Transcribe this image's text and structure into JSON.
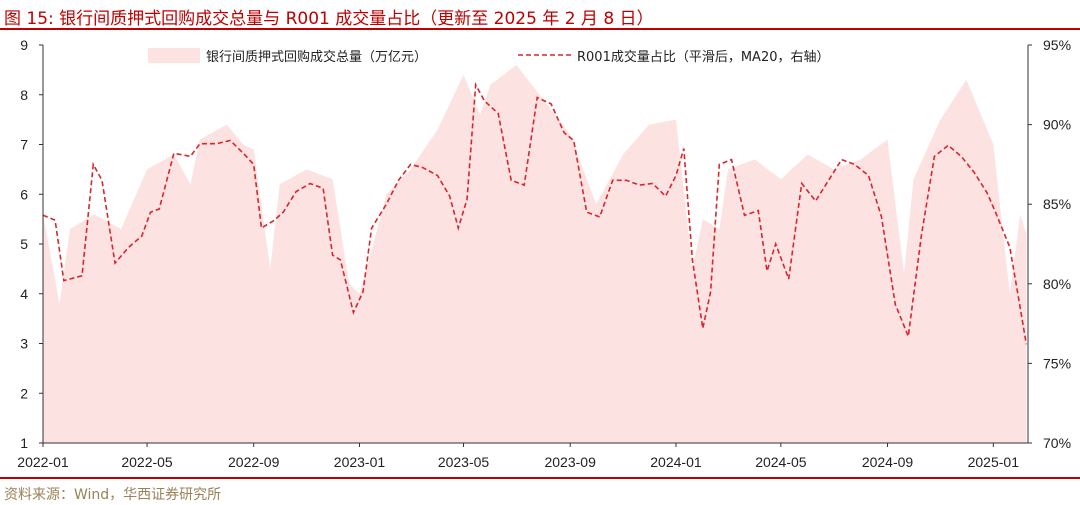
{
  "title": "图 15:  银行间质押式回购成交总量与 R001 成交量占比（更新至 2025 年 2 月 8 日）",
  "source": "资料来源：Wind，华西证券研究所",
  "colors": {
    "accent": "#c00000",
    "bar": "#fde2e2",
    "line": "#d9262b",
    "source": "#9a8259"
  },
  "chart_data": {
    "type": "area",
    "x_ticks": [
      "2022-01",
      "2022-05",
      "2022-09",
      "2023-01",
      "2023-05",
      "2023-09",
      "2024-01",
      "2024-05",
      "2024-09",
      "2025-01"
    ],
    "y_left": {
      "ylim": [
        1,
        9
      ],
      "ticks": [
        "1",
        "2",
        "3",
        "4",
        "5",
        "6",
        "7",
        "8",
        "9"
      ]
    },
    "y_right": {
      "ylim": [
        70,
        95
      ],
      "ticks": [
        "70%",
        "75%",
        "80%",
        "85%",
        "90%",
        "95%"
      ]
    },
    "legend": [
      "银行间质押式回购成交总量（万亿元）",
      "R001成交量占比（平滑后，MA20，右轴）"
    ],
    "grid": false,
    "series": [
      {
        "name": "银行间质押式回购成交总量（万亿元）",
        "axis": "left",
        "style": "area",
        "x": [
          "2022-01-01",
          "2022-01-20",
          "2022-02-01",
          "2022-03-01",
          "2022-04-01",
          "2022-05-01",
          "2022-06-01",
          "2022-06-20",
          "2022-07-01",
          "2022-08-01",
          "2022-08-20",
          "2022-09-01",
          "2022-09-20",
          "2022-10-01",
          "2022-11-01",
          "2022-12-01",
          "2022-12-20",
          "2023-01-01",
          "2023-01-20",
          "2023-02-01",
          "2023-03-01",
          "2023-04-01",
          "2023-05-01",
          "2023-05-20",
          "2023-06-01",
          "2023-07-01",
          "2023-08-01",
          "2023-09-01",
          "2023-10-01",
          "2023-11-01",
          "2023-12-01",
          "2024-01-01",
          "2024-01-20",
          "2024-02-01",
          "2024-02-20",
          "2024-03-01",
          "2024-04-01",
          "2024-05-01",
          "2024-06-01",
          "2024-07-01",
          "2024-08-01",
          "2024-09-01",
          "2024-09-20",
          "2024-10-01",
          "2024-11-01",
          "2024-12-01",
          "2025-01-01",
          "2025-01-20",
          "2025-02-01",
          "2025-02-08"
        ],
        "values": [
          5.6,
          3.8,
          5.3,
          5.6,
          5.3,
          6.5,
          6.8,
          6.2,
          7.1,
          7.4,
          7.0,
          6.9,
          4.5,
          6.2,
          6.5,
          6.3,
          4.2,
          4.0,
          5.2,
          6.0,
          6.5,
          7.3,
          8.4,
          7.6,
          8.2,
          8.6,
          7.9,
          7.2,
          5.8,
          6.8,
          7.4,
          7.5,
          4.5,
          5.5,
          5.3,
          6.5,
          6.7,
          6.3,
          6.8,
          6.5,
          6.7,
          7.1,
          4.4,
          6.3,
          7.5,
          8.3,
          7.0,
          4.0,
          5.6,
          5.2
        ]
      },
      {
        "name": "R001成交量占比（平滑后，MA20，右轴）",
        "axis": "right",
        "style": "dashed-line",
        "x": [
          "2022-01-01",
          "2022-01-15",
          "2022-01-25",
          "2022-02-15",
          "2022-02-28",
          "2022-03-10",
          "2022-03-25",
          "2022-04-10",
          "2022-04-25",
          "2022-05-05",
          "2022-05-15",
          "2022-06-01",
          "2022-06-20",
          "2022-07-01",
          "2022-07-20",
          "2022-08-05",
          "2022-08-20",
          "2022-09-01",
          "2022-09-10",
          "2022-09-25",
          "2022-10-05",
          "2022-10-20",
          "2022-11-05",
          "2022-11-20",
          "2022-12-01",
          "2022-12-10",
          "2022-12-25",
          "2023-01-05",
          "2023-01-15",
          "2023-02-01",
          "2023-02-15",
          "2023-03-01",
          "2023-03-15",
          "2023-04-01",
          "2023-04-15",
          "2023-04-25",
          "2023-05-05",
          "2023-05-15",
          "2023-05-25",
          "2023-06-10",
          "2023-06-25",
          "2023-07-10",
          "2023-07-25",
          "2023-08-10",
          "2023-08-25",
          "2023-09-05",
          "2023-09-20",
          "2023-10-05",
          "2023-10-20",
          "2023-11-05",
          "2023-11-20",
          "2023-12-05",
          "2023-12-20",
          "2024-01-01",
          "2024-01-10",
          "2024-01-20",
          "2024-02-01",
          "2024-02-10",
          "2024-02-20",
          "2024-03-05",
          "2024-03-20",
          "2024-04-05",
          "2024-04-15",
          "2024-04-25",
          "2024-05-10",
          "2024-05-25",
          "2024-06-10",
          "2024-06-25",
          "2024-07-10",
          "2024-07-25",
          "2024-08-10",
          "2024-08-25",
          "2024-09-10",
          "2024-09-25",
          "2024-10-10",
          "2024-10-25",
          "2024-11-10",
          "2024-11-25",
          "2024-12-10",
          "2024-12-25",
          "2025-01-05",
          "2025-01-20",
          "2025-02-01",
          "2025-02-08"
        ],
        "values": [
          84.3,
          84.0,
          80.2,
          80.5,
          87.5,
          86.5,
          81.3,
          82.3,
          83.0,
          84.5,
          84.7,
          88.2,
          88.0,
          88.8,
          88.8,
          89.0,
          88.2,
          87.5,
          83.5,
          84.0,
          84.5,
          85.8,
          86.3,
          86.0,
          81.8,
          81.5,
          78.2,
          79.5,
          83.5,
          85.0,
          86.5,
          87.5,
          87.3,
          86.8,
          85.5,
          83.5,
          85.3,
          92.5,
          91.5,
          90.7,
          86.5,
          86.2,
          91.7,
          91.3,
          89.5,
          89.0,
          84.5,
          84.2,
          86.5,
          86.5,
          86.2,
          86.3,
          85.5,
          86.8,
          88.5,
          81.5,
          77.2,
          79.5,
          87.5,
          87.8,
          84.3,
          84.6,
          80.8,
          82.5,
          80.3,
          86.3,
          85.2,
          86.5,
          87.8,
          87.5,
          86.8,
          84.2,
          78.7,
          76.7,
          83.0,
          88.0,
          88.7,
          88.0,
          87.0,
          85.7,
          84.3,
          82.3,
          78.5,
          76.2
        ]
      }
    ]
  }
}
